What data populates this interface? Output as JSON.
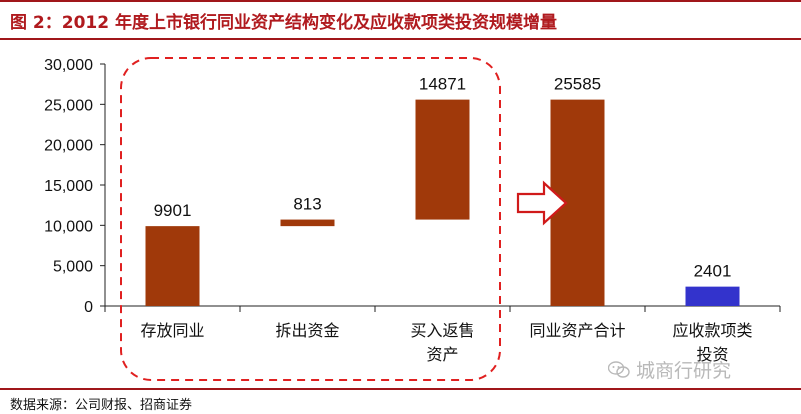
{
  "title": "图  2：2012 年度上市银行同业资产结构变化及应收款项类投资规模增量",
  "source": "数据来源：公司财报、招商证券",
  "watermark": {
    "text": "城商行研究",
    "icon": "wechat-icon"
  },
  "colors": {
    "bar": "#a0390a",
    "blue_bar": "#3333cc",
    "accent": "#b01a1e",
    "dashed_box": "#e02020",
    "arrow": "#d01a1a"
  },
  "chart_data": {
    "type": "bar",
    "subtype": "waterfall",
    "ylim": [
      0,
      30000
    ],
    "yticks": [
      "0",
      "5,000",
      "10,000",
      "15,000",
      "20,000",
      "25,000",
      "30,000"
    ],
    "categories": [
      "存放同业",
      "拆出资金",
      "买入返售资产",
      "同业资产合计",
      "应收款项类投资"
    ],
    "category_lines": [
      [
        "存放同业"
      ],
      [
        "拆出资金"
      ],
      [
        "买入返售",
        "资产"
      ],
      [
        "同业资产合计"
      ],
      [
        "应收款项类",
        "投资"
      ]
    ],
    "values": [
      9901,
      813,
      14871,
      25585,
      2401
    ],
    "bases": [
      0,
      9901,
      10714,
      0,
      0
    ],
    "labels": [
      "9901",
      "813",
      "14871",
      "25585",
      "2401"
    ],
    "bar_colors": [
      "#a0390a",
      "#a0390a",
      "#a0390a",
      "#a0390a",
      "#3333cc"
    ],
    "grid": false,
    "legend": "none",
    "annotations": [
      "dashed-rounded-box-around-first-three",
      "hollow-arrow-to-total"
    ]
  }
}
